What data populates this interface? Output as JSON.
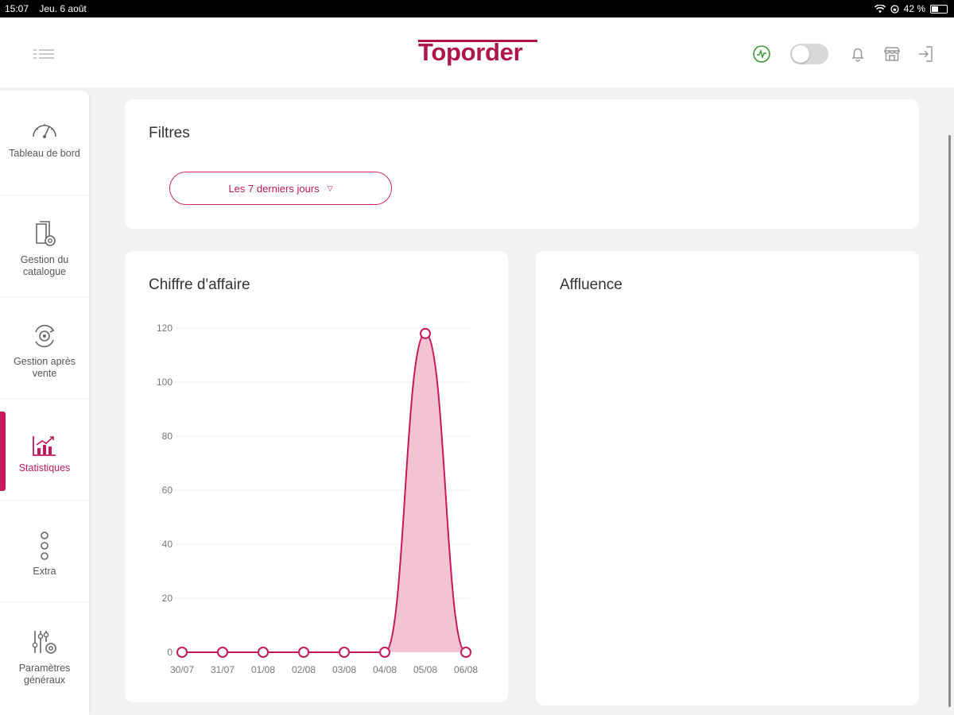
{
  "status_bar": {
    "time": "15:07",
    "date": "Jeu. 6 août",
    "battery": "42 %",
    "battery_level": 0.42
  },
  "header": {
    "logo": "Toporder",
    "toggle_on": false
  },
  "colors": {
    "brand": "#b0154a",
    "accent": "#d2245f",
    "area_fill": "#f2c4d2",
    "online": "#3a9a3a"
  },
  "sidebar": {
    "items": [
      {
        "label": "Tableau de bord",
        "icon": "gauge-icon"
      },
      {
        "label": "Gestion du catalogue",
        "icon": "catalog-settings-icon"
      },
      {
        "label": "Gestion après vente",
        "icon": "after-sales-icon"
      },
      {
        "label": "Statistiques",
        "icon": "statistics-icon",
        "active": true
      },
      {
        "label": "Extra",
        "icon": "more-dots-icon"
      },
      {
        "label": "Paramètres généraux",
        "icon": "settings-sliders-icon"
      }
    ]
  },
  "filters": {
    "title": "Filtres",
    "period": "Les 7 derniers jours"
  },
  "affluence": {
    "title": "Affluence"
  },
  "chart_data": {
    "type": "area",
    "title": "Chiffre d'affaire",
    "categories": [
      "30/07",
      "31/07",
      "01/08",
      "02/08",
      "03/08",
      "04/08",
      "05/08",
      "06/08"
    ],
    "values": [
      0,
      0,
      0,
      0,
      0,
      0,
      118,
      0
    ],
    "yticks": [
      "0",
      "20",
      "40",
      "60",
      "80",
      "100",
      "120"
    ],
    "ylim": [
      0,
      120
    ],
    "grid": true,
    "legend": "none"
  }
}
